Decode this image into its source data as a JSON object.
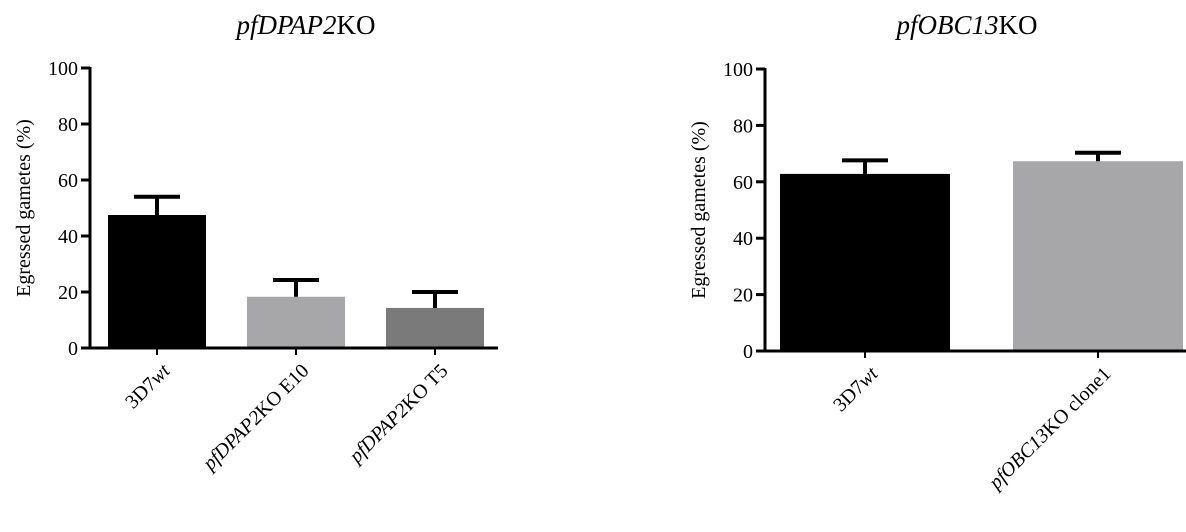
{
  "chart_data": [
    {
      "type": "bar",
      "title": "pfDPAP2KO",
      "title_parts": [
        {
          "text": "pfDPAP2",
          "italic": true
        },
        {
          "text": "KO",
          "italic": false
        }
      ],
      "ylabel": "Egressed gametes (%)",
      "xlabel": "",
      "ylim": [
        0,
        100
      ],
      "yticks": [
        "0",
        "20",
        "40",
        "60",
        "80",
        "100"
      ],
      "categories": [
        "3D7wt",
        "pfDPAP2KO E10",
        "pfDPAP2KO T5"
      ],
      "category_parts": [
        [
          {
            "text": "3D7",
            "italic": false
          },
          {
            "text": "wt",
            "italic": true
          }
        ],
        [
          {
            "text": "pfDPAP2",
            "italic": true
          },
          {
            "text": "KO E10",
            "italic": false
          }
        ],
        [
          {
            "text": "pfDPAP2",
            "italic": true
          },
          {
            "text": "KO T5",
            "italic": false
          }
        ]
      ],
      "values": [
        47.5,
        18.3,
        14.3
      ],
      "errors": [
        6.5,
        6.0,
        5.7
      ],
      "colors": [
        "#000000",
        "#a7a7aa",
        "#7a7a7a"
      ],
      "grid": false
    },
    {
      "type": "bar",
      "title": "pfOBC13KO",
      "title_parts": [
        {
          "text": "pfOBC13",
          "italic": true
        },
        {
          "text": "KO",
          "italic": false
        }
      ],
      "ylabel": "Egressed gametes (%)",
      "xlabel": "",
      "ylim": [
        0,
        100
      ],
      "yticks": [
        "0",
        "20",
        "40",
        "60",
        "80",
        "100"
      ],
      "categories": [
        "3D7wt",
        "pfOBC13KO clone1"
      ],
      "category_parts": [
        [
          {
            "text": "3D7",
            "italic": false
          },
          {
            "text": "wt",
            "italic": true
          }
        ],
        [
          {
            "text": "pfOBC13",
            "italic": true
          },
          {
            "text": "KO clone1",
            "italic": false
          }
        ]
      ],
      "values": [
        62.8,
        67.3
      ],
      "errors": [
        4.8,
        3.0
      ],
      "colors": [
        "#000000",
        "#a7a7aa"
      ],
      "grid": false
    }
  ]
}
